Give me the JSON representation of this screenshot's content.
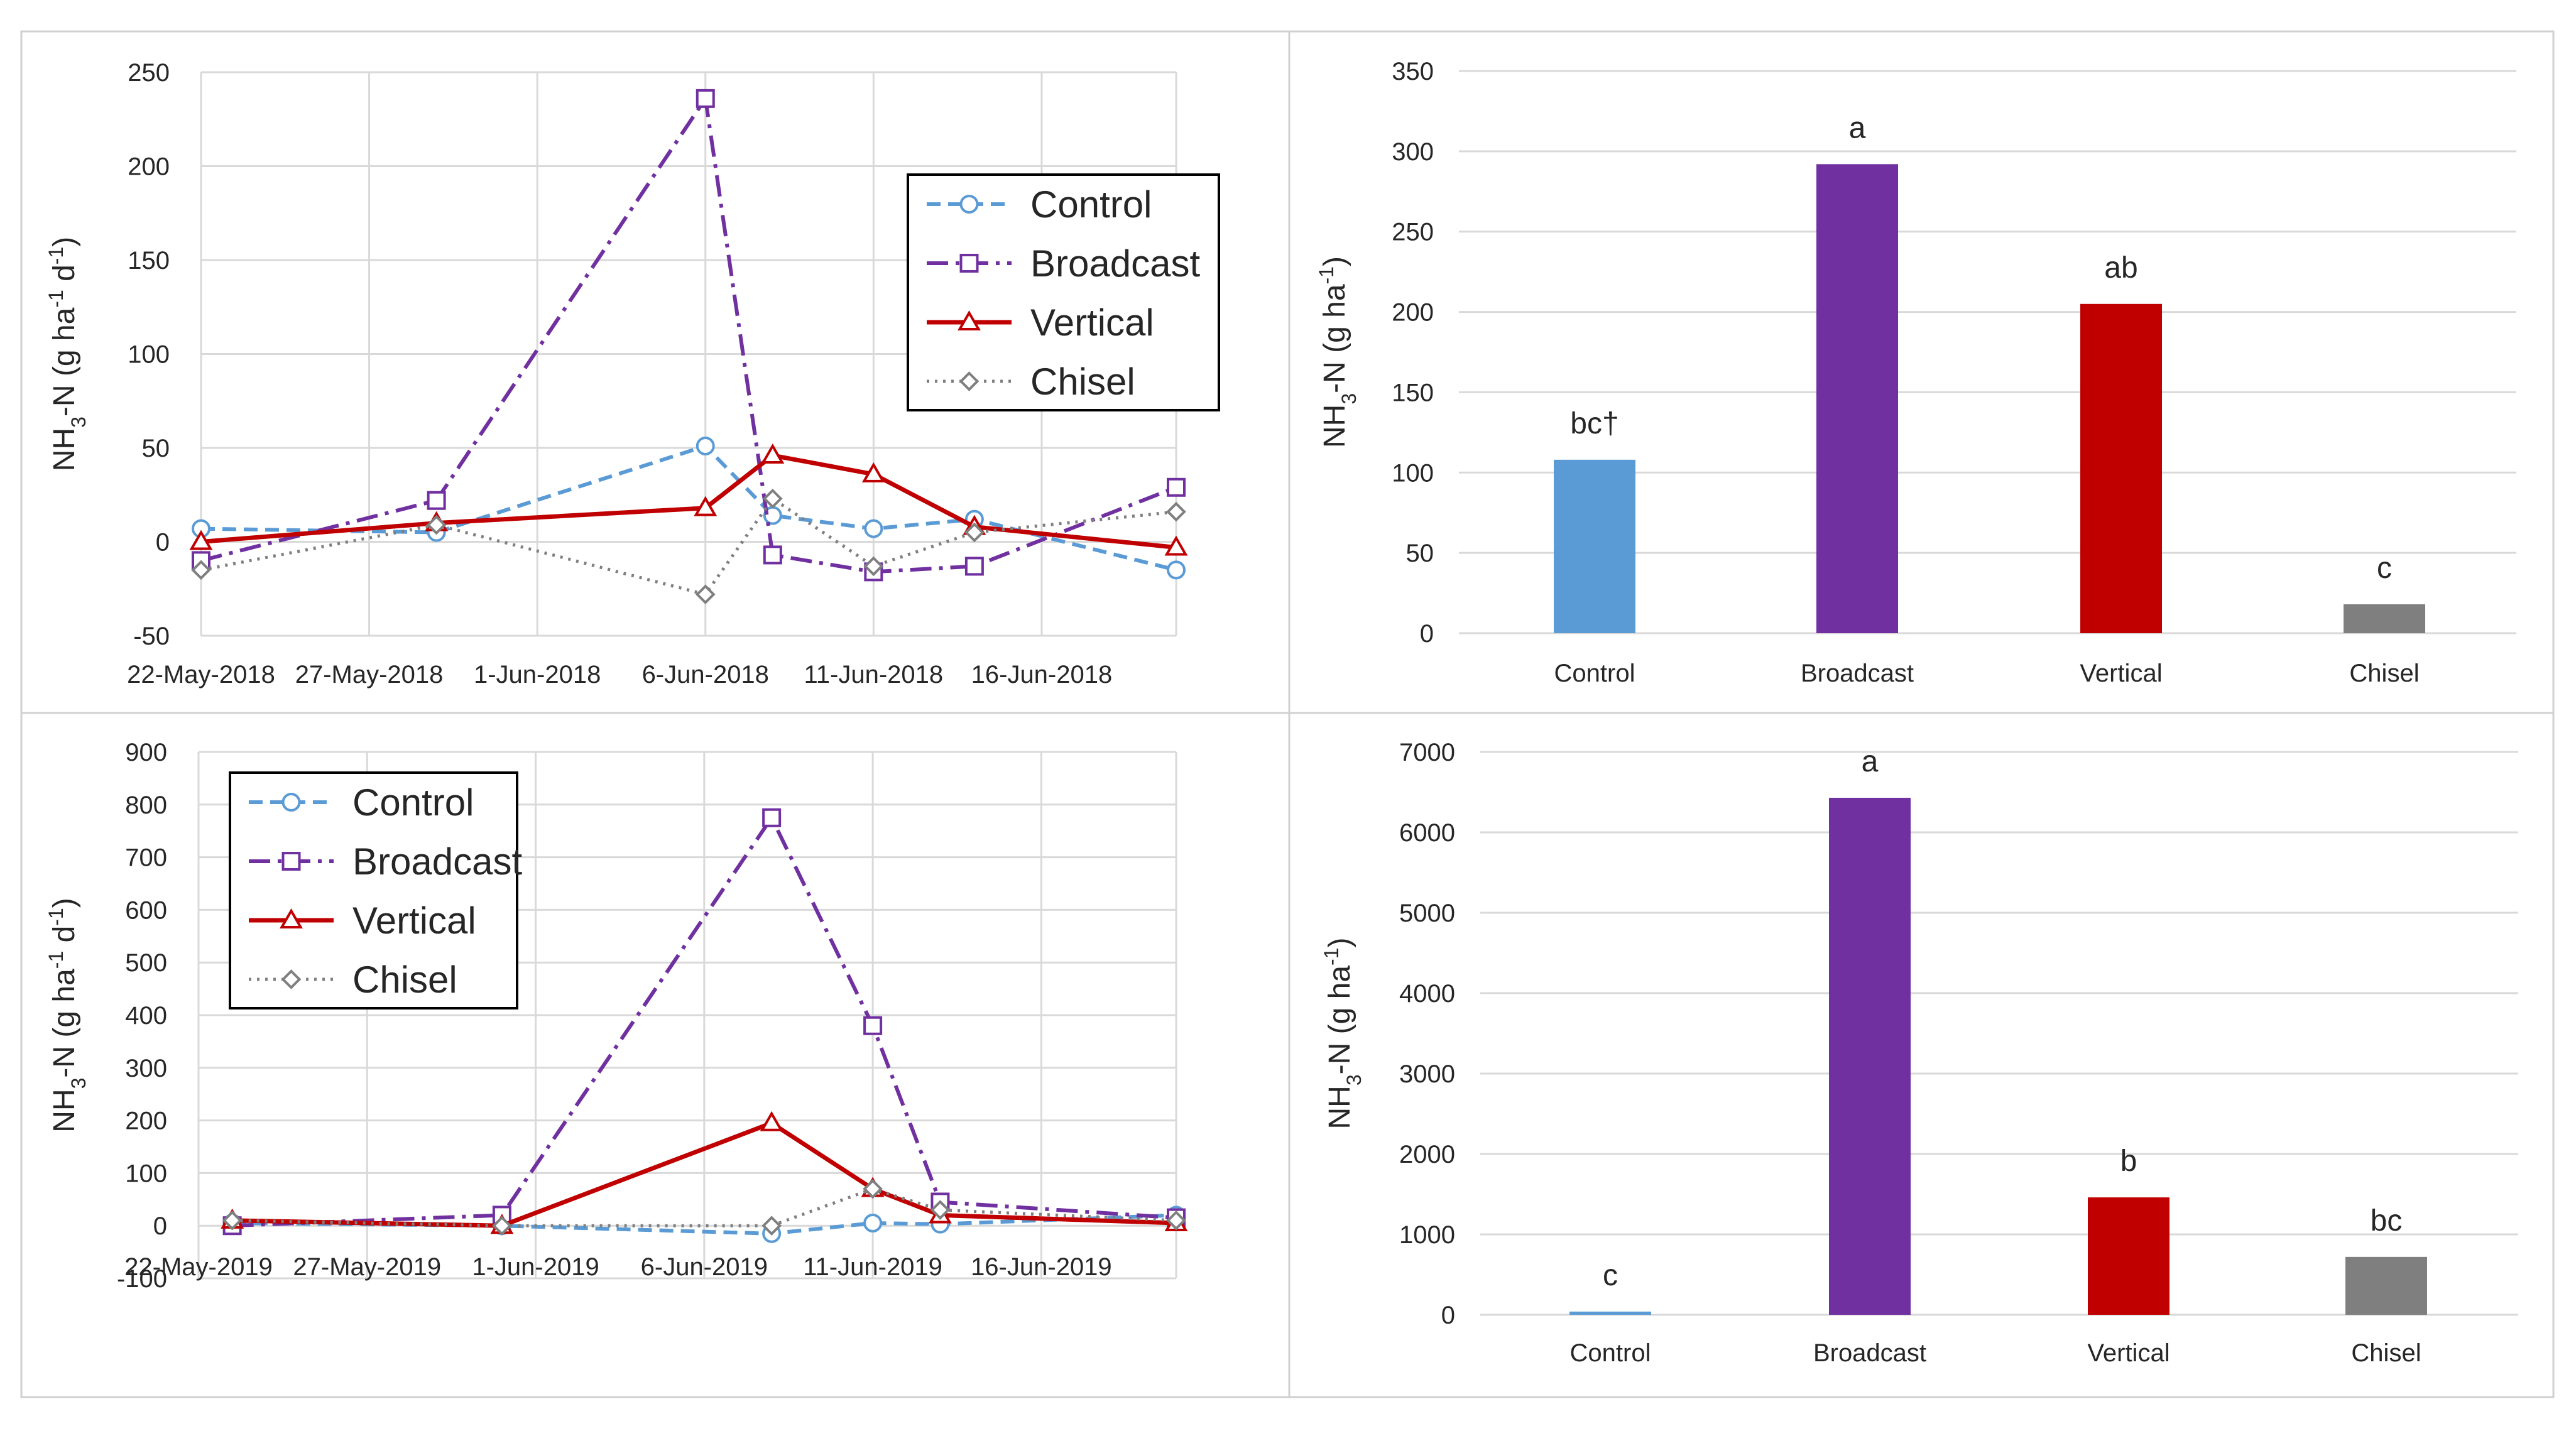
{
  "colors": {
    "Control": "#5B9BD5",
    "Broadcast": "#7030A0",
    "Vertical": "#C00000",
    "Chisel": "#7F7F7F",
    "grid": "#D9D9D9",
    "panel_border": "#D0D0D0"
  },
  "chart_data": [
    {
      "id": "line2018",
      "type": "line",
      "title": "",
      "ylabel": {
        "main": "NH",
        "sub1": "3",
        "mid": "-N (g ha",
        "sup1": "-1",
        "mid2": " d",
        "sup2": "-1",
        "end": ")"
      },
      "xlabel": "",
      "ylim": [
        -50,
        250
      ],
      "yticks": [
        250,
        200,
        150,
        100,
        50,
        0,
        -50
      ],
      "xrange": [
        0,
        29
      ],
      "xticks": [
        {
          "x": 0,
          "label": "22-May-2018"
        },
        {
          "x": 5,
          "label": "27-May-2018"
        },
        {
          "x": 10,
          "label": "1-Jun-2018"
        },
        {
          "x": 15,
          "label": "6-Jun-2018"
        },
        {
          "x": 20,
          "label": "11-Jun-2018"
        },
        {
          "x": 25,
          "label": "16-Jun-2018"
        }
      ],
      "legend_position": "top-right",
      "series": [
        {
          "name": "Control",
          "style": "dashed",
          "marker": "circle",
          "points": [
            [
              0,
              7
            ],
            [
              7,
              5
            ],
            [
              15,
              51
            ],
            [
              17,
              14
            ],
            [
              20,
              7
            ],
            [
              23,
              12
            ],
            [
              29,
              -15
            ]
          ]
        },
        {
          "name": "Broadcast",
          "style": "dashdot",
          "marker": "square",
          "points": [
            [
              0,
              -10
            ],
            [
              7,
              22
            ],
            [
              15,
              236
            ],
            [
              17,
              -7
            ],
            [
              20,
              -16
            ],
            [
              23,
              -13
            ],
            [
              29,
              29
            ]
          ]
        },
        {
          "name": "Vertical",
          "style": "solid",
          "marker": "triangle",
          "points": [
            [
              0,
              0
            ],
            [
              7,
              10
            ],
            [
              15,
              18
            ],
            [
              17,
              46
            ],
            [
              20,
              36
            ],
            [
              23,
              8
            ],
            [
              29,
              -3
            ]
          ]
        },
        {
          "name": "Chisel",
          "style": "dotted",
          "marker": "diamond",
          "points": [
            [
              0,
              -15
            ],
            [
              7,
              9
            ],
            [
              15,
              -28
            ],
            [
              17,
              23
            ],
            [
              20,
              -13
            ],
            [
              23,
              5
            ],
            [
              29,
              16
            ]
          ]
        }
      ]
    },
    {
      "id": "bar2018",
      "type": "bar",
      "title": "",
      "ylabel": {
        "main": "NH",
        "sub1": "3",
        "mid": "-N (g ha",
        "sup1": "-1",
        "end": ")"
      },
      "xlabel": "",
      "ylim": [
        0,
        350
      ],
      "yticks": [
        350,
        300,
        250,
        200,
        150,
        100,
        50,
        0
      ],
      "categories": [
        "Control",
        "Broadcast",
        "Vertical",
        "Chisel"
      ],
      "values": [
        108,
        292,
        205,
        18
      ],
      "letters": [
        "bc†",
        "a",
        "ab",
        "c"
      ]
    },
    {
      "id": "line2019",
      "type": "line",
      "title": "",
      "ylabel": {
        "main": "NH",
        "sub1": "3",
        "mid": "-N (g ha",
        "sup1": "-1",
        "mid2": " d",
        "sup2": "-1",
        "end": ")"
      },
      "xlabel": "",
      "ylim": [
        -100,
        900
      ],
      "yticks": [
        900,
        800,
        700,
        600,
        500,
        400,
        300,
        200,
        100,
        0,
        -100
      ],
      "xrange": [
        0,
        29
      ],
      "xticks": [
        {
          "x": 0,
          "label": "22-May-2019"
        },
        {
          "x": 5,
          "label": "27-May-2019"
        },
        {
          "x": 10,
          "label": "1-Jun-2019"
        },
        {
          "x": 15,
          "label": "6-Jun-2019"
        },
        {
          "x": 20,
          "label": "11-Jun-2019"
        },
        {
          "x": 25,
          "label": "16-Jun-2019"
        }
      ],
      "legend_position": "top-left",
      "series": [
        {
          "name": "Control",
          "style": "dashed",
          "marker": "circle",
          "points": [
            [
              1,
              5
            ],
            [
              9,
              0
            ],
            [
              17,
              -15
            ],
            [
              20,
              5
            ],
            [
              22,
              3
            ],
            [
              29,
              20
            ]
          ]
        },
        {
          "name": "Broadcast",
          "style": "dashdot",
          "marker": "square",
          "points": [
            [
              1,
              0
            ],
            [
              9,
              20
            ],
            [
              17,
              775
            ],
            [
              20,
              380
            ],
            [
              22,
              45
            ],
            [
              29,
              15
            ]
          ]
        },
        {
          "name": "Vertical",
          "style": "solid",
          "marker": "triangle",
          "points": [
            [
              1,
              10
            ],
            [
              9,
              0
            ],
            [
              17,
              195
            ],
            [
              20,
              70
            ],
            [
              22,
              20
            ],
            [
              29,
              5
            ]
          ]
        },
        {
          "name": "Chisel",
          "style": "dotted",
          "marker": "diamond",
          "points": [
            [
              1,
              10
            ],
            [
              9,
              0
            ],
            [
              17,
              0
            ],
            [
              20,
              70
            ],
            [
              22,
              30
            ],
            [
              29,
              10
            ]
          ]
        }
      ]
    },
    {
      "id": "bar2019",
      "type": "bar",
      "title": "",
      "ylabel": {
        "main": "NH",
        "sub1": "3",
        "mid": "-N (g ha",
        "sup1": "-1",
        "end": ")"
      },
      "xlabel": "",
      "ylim": [
        0,
        7000
      ],
      "yticks": [
        7000,
        6000,
        5000,
        4000,
        3000,
        2000,
        1000,
        0
      ],
      "categories": [
        "Control",
        "Broadcast",
        "Vertical",
        "Chisel"
      ],
      "values": [
        40,
        6430,
        1460,
        720
      ],
      "letters": [
        "c",
        "a",
        "b",
        "bc"
      ]
    }
  ]
}
